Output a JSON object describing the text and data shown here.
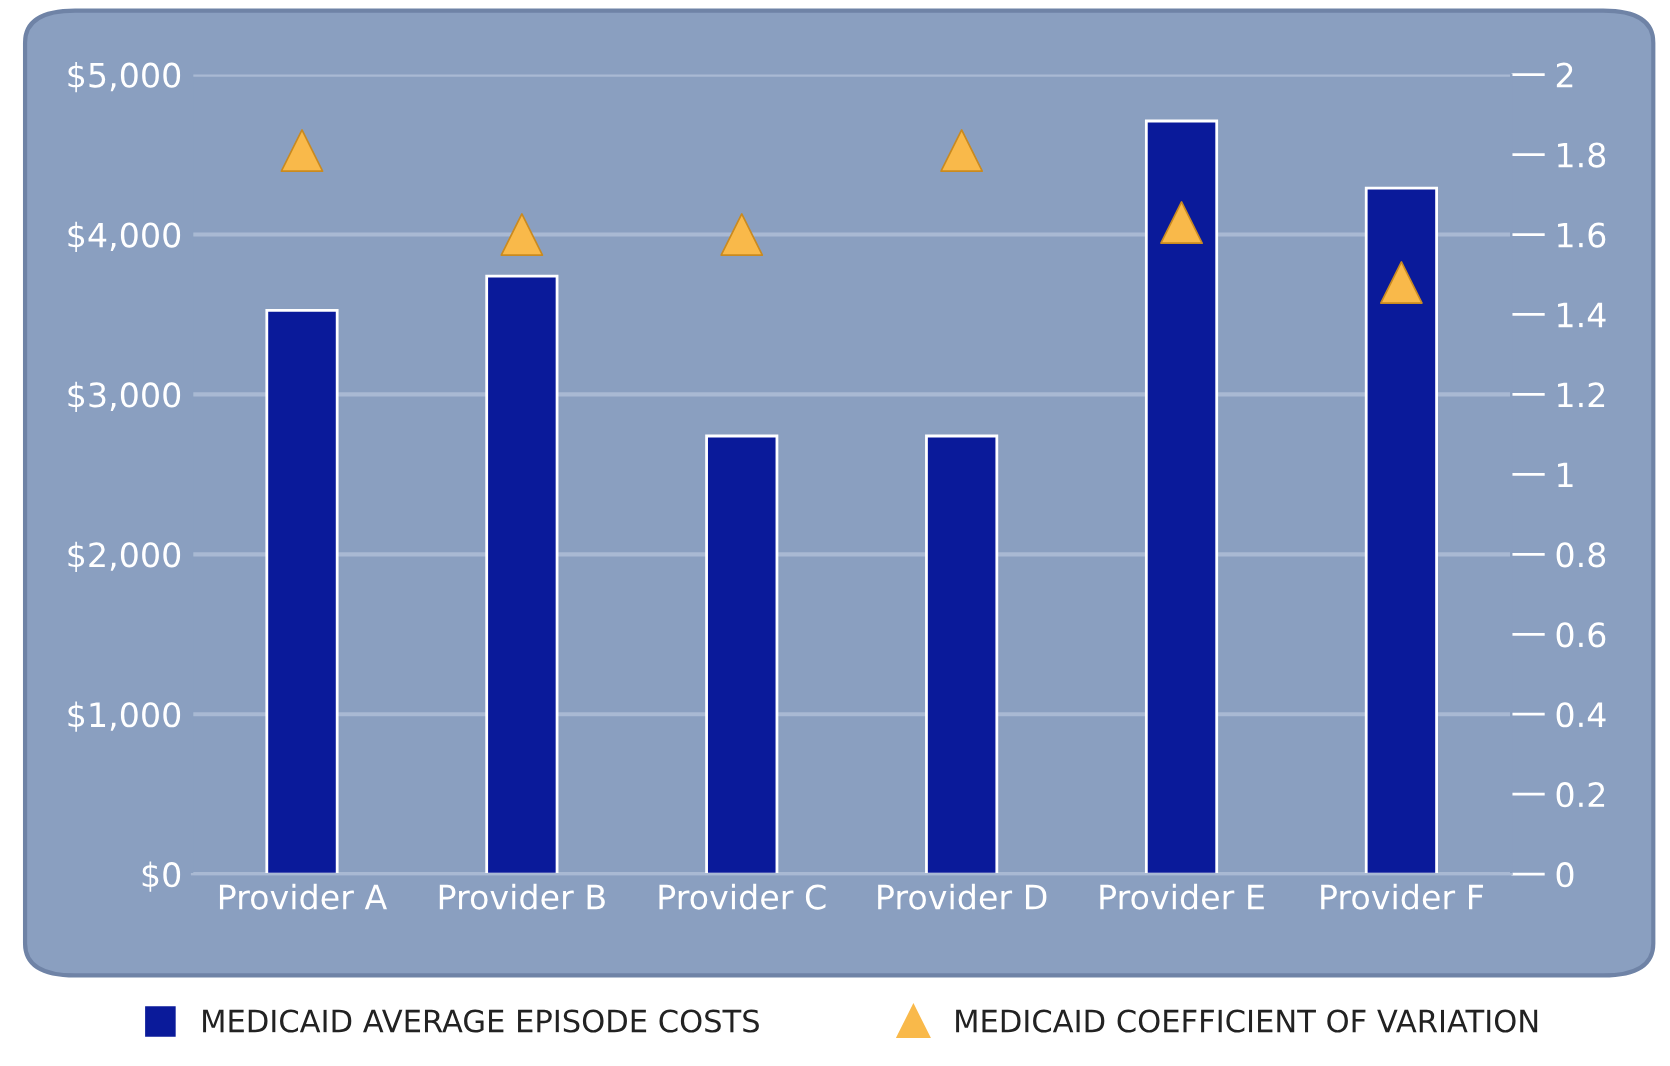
{
  "chart_data": {
    "type": "bar",
    "categories": [
      "Provider A",
      "Provider B",
      "Provider C",
      "Provider D",
      "Provider E",
      "Provider F"
    ],
    "series": [
      {
        "name": "MEDICAID AVERAGE EPISODE COSTS",
        "color": "#0a1a9a",
        "values": [
          3525,
          3740,
          2740,
          2740,
          4710,
          4290
        ]
      },
      {
        "name": "MEDICAID COEFFICIENT OF VARIATION",
        "type": "scatter",
        "axis": "y2",
        "marker": "triangle",
        "color": "#f9b94a",
        "values": [
          1.81,
          1.6,
          1.6,
          1.81,
          1.63,
          1.48
        ]
      }
    ],
    "ylim": [
      0,
      5000
    ],
    "yticks": [
      {
        "value": 0,
        "label": "$0"
      },
      {
        "value": 1000,
        "label": "$1,000"
      },
      {
        "value": 2000,
        "label": "$2,000"
      },
      {
        "value": 3000,
        "label": "$3,000"
      },
      {
        "value": 4000,
        "label": "$4,000"
      },
      {
        "value": 5000,
        "label": "$5,000"
      }
    ],
    "y2lim": [
      0,
      2
    ],
    "y2ticks": [
      0,
      0.2,
      0.4,
      0.6,
      0.8,
      1,
      1.2,
      1.4,
      1.6,
      1.8,
      2
    ],
    "grid": "y",
    "legend": "bottom"
  }
}
